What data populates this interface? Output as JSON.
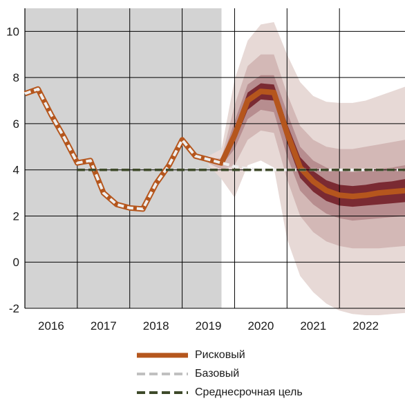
{
  "chart_data": {
    "type": "line",
    "title": "",
    "xlabel": "",
    "ylabel": "",
    "ylim": [
      -2,
      11
    ],
    "xlim": [
      2015.5,
      2022.75
    ],
    "yticks": [
      -2,
      0,
      2,
      4,
      6,
      8,
      10
    ],
    "xtick_labels": [
      "2016",
      "2017",
      "2018",
      "2019",
      "2020",
      "2021",
      "2022"
    ],
    "xtick_positions": [
      2016,
      2017,
      2018,
      2019,
      2020,
      2021,
      2022
    ],
    "grid": true,
    "history_shaded_until": 2019.25,
    "legend_position": "bottom",
    "colors": {
      "risk": "#b5561d",
      "base": "#c0c0c0",
      "target": "#3e4a2a",
      "shade": "#d3d3d3",
      "fan_outer": "#e7d9d6",
      "fan_mid": "#d3b8b6",
      "fan_inner": "#b78d8f",
      "fan_core": "#7a2a32"
    },
    "series": [
      {
        "name": "Рисковый",
        "style": "thick-solid",
        "x": [
          2015.5,
          2015.75,
          2016.0,
          2016.25,
          2016.5,
          2016.75,
          2017.0,
          2017.25,
          2017.5,
          2017.75,
          2018.0,
          2018.25,
          2018.5,
          2018.75,
          2019.0,
          2019.25,
          2019.5,
          2019.75,
          2020.0,
          2020.25,
          2020.5,
          2020.75,
          2021.0,
          2021.25,
          2021.5,
          2021.75,
          2022.0,
          2022.25,
          2022.5,
          2022.75
        ],
        "values": [
          7.3,
          7.5,
          6.4,
          5.4,
          4.3,
          4.4,
          3.0,
          2.5,
          2.35,
          2.3,
          3.4,
          4.2,
          5.3,
          4.6,
          4.45,
          4.3,
          5.5,
          7.0,
          7.4,
          7.35,
          5.6,
          4.1,
          3.5,
          3.1,
          2.9,
          2.85,
          2.9,
          3.0,
          3.05,
          3.1
        ]
      },
      {
        "name": "Базовый",
        "style": "dashed-light",
        "x": [
          2015.5,
          2015.75,
          2016.0,
          2016.25,
          2016.5,
          2016.75,
          2017.0,
          2017.25,
          2017.5,
          2017.75,
          2018.0,
          2018.25,
          2018.5,
          2018.75,
          2019.0,
          2019.25,
          2019.5,
          2019.75,
          2020.0,
          2020.25,
          2020.5,
          2020.75,
          2021.0,
          2021.25,
          2021.5,
          2021.75,
          2022.0,
          2022.25,
          2022.5,
          2022.75
        ],
        "values": [
          7.3,
          7.5,
          6.4,
          5.4,
          4.3,
          4.4,
          3.0,
          2.5,
          2.35,
          2.3,
          3.4,
          4.2,
          5.3,
          4.6,
          4.45,
          4.3,
          4.15,
          4.05,
          4.0,
          4.0,
          4.0,
          4.0,
          4.0,
          4.0,
          4.0,
          4.0,
          4.0,
          4.0,
          4.0,
          4.0
        ]
      },
      {
        "name": "Среднесрочная цель",
        "style": "dashed-dark",
        "x": [
          2016.5,
          2022.75
        ],
        "values": [
          4.0,
          4.0
        ]
      }
    ],
    "fan": {
      "x": [
        2019.0,
        2019.25,
        2019.5,
        2019.75,
        2020.0,
        2020.25,
        2020.5,
        2020.75,
        2021.0,
        2021.25,
        2021.5,
        2021.75,
        2022.0,
        2022.25,
        2022.5,
        2022.75
      ],
      "bands": [
        {
          "level": "outer",
          "lower": [
            4.2,
            3.6,
            2.8,
            4.2,
            4.4,
            4.1,
            1.0,
            -0.6,
            -1.3,
            -1.8,
            -2.1,
            -2.25,
            -2.3,
            -2.3,
            -2.25,
            -2.2
          ],
          "upper": [
            4.6,
            4.9,
            7.9,
            9.6,
            10.3,
            10.4,
            9.0,
            7.8,
            7.2,
            6.95,
            6.9,
            6.9,
            7.0,
            7.2,
            7.4,
            7.6
          ]
        },
        {
          "level": "mid",
          "lower": [
            4.3,
            4.0,
            4.2,
            5.3,
            5.7,
            5.6,
            3.6,
            2.0,
            1.3,
            0.9,
            0.7,
            0.6,
            0.6,
            0.6,
            0.65,
            0.7
          ],
          "upper": [
            4.5,
            4.5,
            6.8,
            8.5,
            9.0,
            9.0,
            7.3,
            5.9,
            5.3,
            5.0,
            4.9,
            4.9,
            5.0,
            5.1,
            5.2,
            5.3
          ]
        },
        {
          "level": "inner",
          "lower": [
            4.35,
            4.2,
            4.9,
            6.2,
            6.6,
            6.5,
            4.6,
            3.1,
            2.5,
            2.1,
            1.9,
            1.8,
            1.85,
            1.9,
            1.95,
            2.0
          ],
          "upper": [
            4.45,
            4.4,
            6.1,
            7.7,
            8.1,
            8.1,
            6.5,
            5.0,
            4.4,
            4.1,
            3.95,
            3.9,
            3.95,
            4.05,
            4.1,
            4.2
          ]
        },
        {
          "level": "core",
          "lower": [
            4.38,
            4.28,
            5.2,
            6.6,
            7.05,
            7.0,
            5.2,
            3.65,
            3.05,
            2.65,
            2.45,
            2.4,
            2.45,
            2.5,
            2.55,
            2.6
          ],
          "upper": [
            4.42,
            4.35,
            5.8,
            7.35,
            7.75,
            7.7,
            6.0,
            4.55,
            3.95,
            3.55,
            3.35,
            3.3,
            3.35,
            3.45,
            3.5,
            3.6
          ]
        }
      ]
    }
  },
  "legend": {
    "risk_label": "Рисковый",
    "base_label": "Базовый",
    "target_label": "Среднесрочная цель"
  }
}
